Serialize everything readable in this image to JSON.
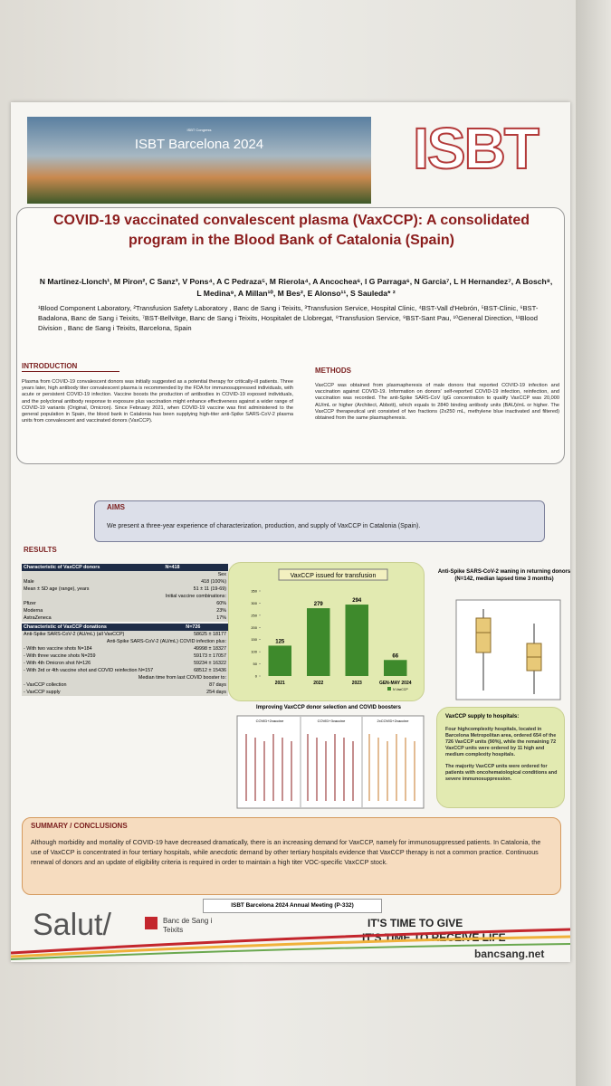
{
  "banner": {
    "congress": "ISBT Congress",
    "title": "ISBT Barcelona 2024"
  },
  "logo": "ISBT",
  "title": "COVID-19 vaccinated convalescent plasma (VaxCCP): A consolidated program in the Blood Bank of Catalonia (Spain)",
  "authors": "N Martinez-Llonch¹, M Piron², C Sanz³, V Pons⁴, A C Pedraza⁵, M Rierola⁴, A Ancochea⁶, I G Parraga⁶, N Garcia⁷, L H Hernandez⁷, A Bosch⁸, L Medina⁹, A Millan¹⁰, M Bes², E Alonso¹¹, S Sauleda* ²",
  "affiliations": "¹Blood Component Laboratory, ²Transfusion Safety Laboratory , Banc de Sang i Teixits, ³Transfusion Service, Hospital Clinic, ⁴BST-Vall d'Hebrón, ⁵BST-Clinic, ⁶BST-Badalona, Banc de Sang i Teixits, ⁷BST-Bellvitge, Banc de Sang i Teixits, Hospitalet de Llobregat, ⁸Transfusion Service, ⁹BST-Sant Pau, ¹⁰General Direction, ¹¹Blood Division , Banc de Sang i Teixits, Barcelona, Spain",
  "introduction": {
    "heading": "INTRODUCTION",
    "text": "Plasma from COVID-19 convalescent donors was initially suggested as a potential therapy for critically-ill patients. Three years later, high antibody titer convalescent plasma is recommended by the FDA for immunosuppressed individuals, with acute or persistent COVID-19 infection. Vaccine boosts the production of antibodies in COVID-19 exposed individuals, and the polyclonal antibody response to exposure plus vaccination might enhance effectiveness against a wider range of COVID-19 variants (Original, Omicron). Since February 2021, when COVID-19 vaccine was first administered to the general population in Spain, the blood bank in Catalonia has been supplying high-titer anti-Spike SARS-CoV-2 plasma units from convalescent and vaccinated donors (VaxCCP)."
  },
  "methods": {
    "heading": "METHODS",
    "text": "VaxCCP was obtained from plasmapheresis of male donors that reported COVID-19 infection and vaccination against COVID-19. Information on donors' self-reported COVID-19 infection, reinfection, and vaccination was recorded. The anti-Spike SARS-CoV IgG concentration to qualify VaxCCP was 20,000 AU/mL or higher (Architect, Abbott), which equals to 2840 binding antibody units (BAU)/mL or higher. The VaxCCP therapeutical unit consisted of two fractions (2x250 mL, methylene blue inactivated and filtered) obtained from the same plasmapheresis."
  },
  "aims": {
    "heading": "AIMS",
    "text": "We present a three-year experience of characterization, production, and supply of VaxCCP in Catalonia (Spain)."
  },
  "results": {
    "heading": "RESULTS",
    "donors": {
      "header": [
        "Characteristic of VaxCCP donors",
        "N=418"
      ],
      "rows": [
        [
          "Sex"
        ],
        [
          "Male",
          "418 (100%)"
        ],
        [
          "Mean ± SD age (range), years",
          "51 ± 11 (19-69)"
        ],
        [
          "Initial vaccine combinations:"
        ],
        [
          "Pfizer",
          "60%"
        ],
        [
          "Moderna",
          "23%"
        ],
        [
          "AstraZeneca",
          "17%"
        ]
      ]
    },
    "donations": {
      "header": [
        "Characteristic of VaxCCP donations",
        "N=726"
      ],
      "rows": [
        [
          "Anti-Spike SARS-CoV-2 (AU/mL) (all VaxCCP)",
          "58625 ± 18177"
        ],
        [
          "Anti-Spike SARS-CoV-2 (AU/mL) COVID infection plus:"
        ],
        [
          "- With two vaccine shots N=184",
          "49998 ± 18327"
        ],
        [
          "- With three vaccine shots N=259",
          "59173 ± 17057"
        ],
        [
          "- With 4th Omicron shot N=126",
          "59234 ± 16322"
        ],
        [
          "- With 3rd or 4th vaccine shot and COVID reinfection N=157",
          "68512 ± 15436"
        ],
        [
          "Median time from last COVID booster to:"
        ],
        [
          "- VaxCCP collection",
          "87 days"
        ],
        [
          "- VaxCCP supply",
          "254 days"
        ]
      ]
    },
    "chart": {
      "type": "bar",
      "title": "VaxCCP issued for transfusion",
      "categories": [
        "2021",
        "2022",
        "2023",
        "GEN-MAY 2024"
      ],
      "values": [
        125,
        279,
        294,
        66
      ],
      "legend": "N VaxCCP",
      "color": "#3e8a2c",
      "ylim": [
        0,
        350
      ],
      "yticks": [
        0,
        50,
        100,
        150,
        200,
        250,
        300,
        350
      ]
    },
    "waning": {
      "title": "Anti-Spike SARS-CoV-2 waning in returning donors",
      "subtitle": "(N=142, median lapsed time 3 months)"
    },
    "boosters": {
      "title": "Improving VaxCCP donor selection and COVID boosters",
      "panels": [
        "COVID+2vaccine",
        "COVID+3vaccine",
        "2xCOVID+2vaccine"
      ]
    },
    "supply": {
      "title": "VaxCCP supply to hospitals:",
      "items": [
        "Four highcomplexity hospitals, located in Barcelona Metropolitan area, ordered 654 of the 726 VaxCCP units (90%), while the remaining 72 VaxCCP units were ordered by 11 high and medium complexity hospitals.",
        "The majority VaxCCP units were ordered for patients with oncohematological conditions and severe immunosuppression."
      ]
    }
  },
  "summary": {
    "heading": "SUMMARY / CONCLUSIONS",
    "text": "Although morbidity and mortality of COVID-19 have decreased dramatically, there is an increasing demand for VaxCCP, namely for immunosuppressed patients. In Catalonia, the use of VaxCCP is concentrated in four tertiary hospitals, while anecdotic demand by other tertiary hospitals evidence that VaxCCP therapy is not a common practice. Continuous renewal of donors and an update of eligibility criteria is required in order to maintain a high titer VOC-specific VaxCCP stock."
  },
  "footer": {
    "meeting": "ISBT Barcelona 2024 Annual Meeting (P-332)",
    "salut": "Salut/",
    "bank": "Banc de Sang i Teixits",
    "slogan1": "IT'S TIME TO GIVE",
    "slogan2": "IT'S TIME TO RECEIVE LIFE",
    "url": "bancsang.net"
  }
}
